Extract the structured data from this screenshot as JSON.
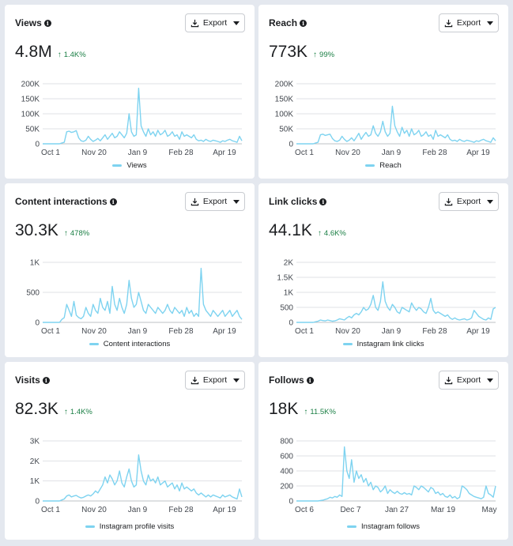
{
  "colors": {
    "series": "#7ed3f0",
    "positive": "#1b7f45",
    "grid": "#dfe1e5"
  },
  "export_label": "Export",
  "cards": [
    {
      "title": "Views",
      "value": "4.8M",
      "change": "1.4K%",
      "legend": "Views",
      "chart_data": {
        "type": "line",
        "yticks": [
          "0",
          "50K",
          "100K",
          "150K",
          "200K"
        ],
        "ymax": 200000,
        "xticks": [
          "Oct 1",
          "Nov 20",
          "Jan 9",
          "Feb 28",
          "Apr 19"
        ],
        "series": [
          {
            "name": "Views",
            "values": [
              0,
              0,
              0,
              0,
              0,
              0,
              0,
              0,
              3000,
              5000,
              40000,
              42000,
              38000,
              40000,
              44000,
              20000,
              10000,
              8000,
              12000,
              25000,
              15000,
              8000,
              12000,
              18000,
              10000,
              20000,
              30000,
              15000,
              25000,
              35000,
              20000,
              25000,
              40000,
              30000,
              20000,
              35000,
              100000,
              40000,
              25000,
              30000,
              185000,
              60000,
              40000,
              25000,
              50000,
              30000,
              40000,
              25000,
              45000,
              30000,
              35000,
              45000,
              25000,
              30000,
              40000,
              25000,
              30000,
              15000,
              40000,
              25000,
              30000,
              25000,
              20000,
              30000,
              15000,
              10000,
              12000,
              8000,
              15000,
              10000,
              8000,
              12000,
              10000,
              8000,
              5000,
              10000,
              8000,
              12000,
              15000,
              10000,
              8000,
              5000,
              25000,
              10000
            ]
          }
        ]
      }
    },
    {
      "title": "Reach",
      "value": "773K",
      "change": "99%",
      "legend": "Reach",
      "chart_data": {
        "type": "line",
        "yticks": [
          "0",
          "50K",
          "100K",
          "150K",
          "200K"
        ],
        "ymax": 200000,
        "xticks": [
          "Oct 1",
          "Nov 20",
          "Jan 9",
          "Feb 28",
          "Apr 19"
        ],
        "series": [
          {
            "name": "Reach",
            "values": [
              0,
              0,
              0,
              0,
              0,
              0,
              0,
              0,
              3000,
              5000,
              30000,
              32000,
              28000,
              30000,
              32000,
              18000,
              10000,
              8000,
              12000,
              25000,
              15000,
              8000,
              12000,
              20000,
              10000,
              22000,
              35000,
              15000,
              28000,
              38000,
              25000,
              30000,
              60000,
              35000,
              25000,
              40000,
              75000,
              40000,
              25000,
              35000,
              125000,
              60000,
              40000,
              25000,
              55000,
              35000,
              45000,
              25000,
              50000,
              30000,
              35000,
              45000,
              25000,
              30000,
              40000,
              25000,
              30000,
              15000,
              45000,
              25000,
              30000,
              25000,
              20000,
              30000,
              15000,
              10000,
              12000,
              8000,
              15000,
              10000,
              8000,
              12000,
              10000,
              8000,
              5000,
              10000,
              8000,
              12000,
              15000,
              10000,
              8000,
              5000,
              20000,
              10000
            ]
          }
        ]
      }
    },
    {
      "title": "Content interactions",
      "value": "30.3K",
      "change": "478%",
      "legend": "Content interactions",
      "chart_data": {
        "type": "line",
        "yticks": [
          "0",
          "500",
          "1K"
        ],
        "ymax": 1000,
        "xticks": [
          "Oct 1",
          "Nov 20",
          "Jan 9",
          "Feb 28",
          "Apr 19"
        ],
        "series": [
          {
            "name": "Content interactions",
            "values": [
              0,
              0,
              0,
              0,
              0,
              0,
              0,
              0,
              50,
              80,
              300,
              200,
              100,
              350,
              120,
              80,
              60,
              100,
              250,
              150,
              100,
              300,
              200,
              150,
              400,
              250,
              200,
              350,
              150,
              600,
              300,
              200,
              400,
              250,
              150,
              300,
              700,
              400,
              250,
              300,
              500,
              350,
              200,
              150,
              300,
              250,
              200,
              150,
              250,
              200,
              150,
              200,
              300,
              200,
              150,
              250,
              200,
              150,
              200,
              100,
              250,
              150,
              200,
              100,
              150,
              100,
              900,
              300,
              200,
              150,
              100,
              200,
              150,
              100,
              150,
              200,
              100,
              150,
              200,
              100,
              150,
              200,
              100,
              50
            ]
          }
        ]
      }
    },
    {
      "title": "Link clicks",
      "value": "44.1K",
      "change": "4.6K%",
      "legend": "Instagram link clicks",
      "chart_data": {
        "type": "line",
        "yticks": [
          "0",
          "500",
          "1K",
          "1.5K",
          "2K"
        ],
        "ymax": 2000,
        "xticks": [
          "Oct 1",
          "Nov 20",
          "Jan 9",
          "Feb 28",
          "Apr 19"
        ],
        "series": [
          {
            "name": "Instagram link clicks",
            "values": [
              0,
              0,
              0,
              0,
              0,
              0,
              0,
              0,
              20,
              40,
              80,
              60,
              50,
              80,
              60,
              40,
              50,
              80,
              120,
              100,
              80,
              150,
              200,
              150,
              250,
              300,
              250,
              350,
              500,
              400,
              450,
              600,
              900,
              500,
              400,
              700,
              1350,
              700,
              500,
              400,
              600,
              500,
              350,
              300,
              500,
              450,
              400,
              350,
              650,
              500,
              400,
              500,
              450,
              350,
              300,
              500,
              800,
              400,
              300,
              350,
              300,
              250,
              200,
              250,
              150,
              100,
              150,
              100,
              80,
              100,
              120,
              80,
              100,
              150,
              400,
              300,
              200,
              150,
              100,
              80,
              150,
              100,
              450,
              500
            ]
          }
        ]
      }
    },
    {
      "title": "Visits",
      "value": "82.3K",
      "change": "1.4K%",
      "legend": "Instagram profile visits",
      "chart_data": {
        "type": "line",
        "yticks": [
          "0",
          "1K",
          "2K",
          "3K"
        ],
        "ymax": 3000,
        "xticks": [
          "Oct 1",
          "Nov 20",
          "Jan 9",
          "Feb 28",
          "Apr 19"
        ],
        "series": [
          {
            "name": "Instagram profile visits",
            "values": [
              0,
              0,
              0,
              0,
              0,
              0,
              0,
              0,
              50,
              100,
              250,
              300,
              200,
              250,
              280,
              200,
              150,
              180,
              250,
              300,
              250,
              350,
              500,
              400,
              600,
              800,
              1200,
              900,
              1300,
              1100,
              800,
              1000,
              1500,
              900,
              700,
              1200,
              1600,
              1000,
              700,
              800,
              2300,
              1500,
              1000,
              800,
              1300,
              1000,
              1100,
              900,
              1200,
              800,
              900,
              1000,
              700,
              800,
              900,
              600,
              800,
              500,
              900,
              600,
              700,
              600,
              500,
              600,
              400,
              300,
              400,
              300,
              200,
              300,
              200,
              300,
              250,
              200,
              150,
              300,
              200,
              250,
              300,
              200,
              150,
              100,
              600,
              200
            ]
          }
        ]
      }
    },
    {
      "title": "Follows",
      "value": "18K",
      "change": "11.5K%",
      "legend": "Instagram follows",
      "chart_data": {
        "type": "line",
        "yticks": [
          "0",
          "200",
          "400",
          "600",
          "800"
        ],
        "ymax": 800,
        "xticks": [
          "Oct 6",
          "Dec 7",
          "Jan 27",
          "Mar 19",
          "May"
        ],
        "series": [
          {
            "name": "Instagram follows",
            "values": [
              0,
              0,
              0,
              0,
              0,
              0,
              0,
              0,
              0,
              0,
              5,
              10,
              20,
              30,
              50,
              40,
              60,
              50,
              80,
              60,
              720,
              400,
              300,
              550,
              250,
              400,
              300,
              350,
              250,
              300,
              200,
              250,
              150,
              200,
              180,
              120,
              150,
              200,
              100,
              150,
              120,
              100,
              130,
              100,
              90,
              110,
              90,
              100,
              80,
              200,
              180,
              150,
              200,
              180,
              150,
              120,
              180,
              160,
              100,
              120,
              80,
              100,
              60,
              50,
              80,
              40,
              60,
              30,
              50,
              200,
              180,
              150,
              100,
              80,
              60,
              50,
              40,
              30,
              50,
              200,
              100,
              80,
              50,
              200
            ]
          }
        ]
      }
    }
  ]
}
